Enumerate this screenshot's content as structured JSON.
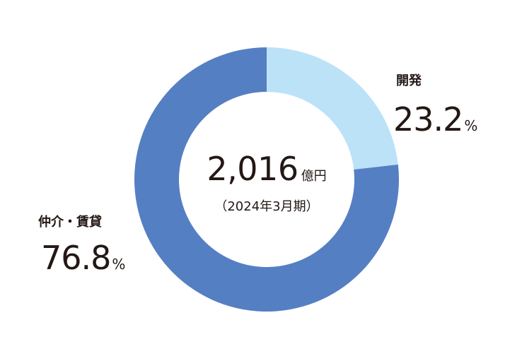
{
  "chart_data": {
    "type": "pie",
    "title": "",
    "center_total": {
      "value": "2,016",
      "unit": "億円"
    },
    "center_period": "（2024年3月期）",
    "series": [
      {
        "name": "開発",
        "value": 23.2,
        "display": "23.2",
        "unit": "%",
        "color": "#bce2f8"
      },
      {
        "name": "仲介・賃貸",
        "value": 76.8,
        "display": "76.8",
        "unit": "%",
        "color": "#557fc3"
      }
    ]
  }
}
